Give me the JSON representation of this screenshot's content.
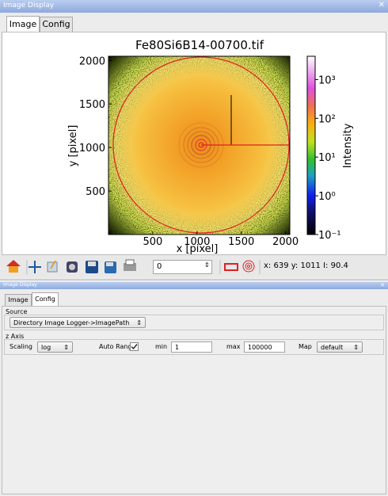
{
  "top_window": {
    "title": "Image Display",
    "tabs": [
      "Image",
      "Config"
    ],
    "plot": {
      "title": "Fe80Si6B14-00700.tif",
      "xlabel": "x [pixel]",
      "ylabel": "y [pixel]",
      "xlim": [
        0,
        2048
      ],
      "ylim": [
        0,
        2048
      ],
      "xticks": [
        500,
        1000,
        1500,
        2000
      ],
      "yticks": [
        500,
        1000,
        1500,
        2000
      ],
      "colorbar": {
        "label": "Intensity",
        "scale": "log",
        "lim": [
          0.1,
          4000
        ],
        "ticks": [
          {
            "value": 0.1,
            "label": "10⁻¹"
          },
          {
            "value": 1,
            "label": "10⁰"
          },
          {
            "value": 10,
            "label": "10¹"
          },
          {
            "value": 100,
            "label": "10²"
          },
          {
            "value": 1000,
            "label": "10³"
          }
        ]
      }
    },
    "toolbar": {
      "frame": "0",
      "status": "x: 639 y: 1011 I: 90.4"
    }
  },
  "bottom_window": {
    "title": "Image Display",
    "tabs": [
      "Image",
      "Config"
    ],
    "source": {
      "label": "Source",
      "value": "Directory Image Logger->ImagePath"
    },
    "z_axis": {
      "label": "z Axis",
      "scaling_label": "Scaling",
      "scaling": "log",
      "auto_range_label": "Auto Range",
      "auto_range": true,
      "min_label": "min",
      "min": "1",
      "max_label": "max",
      "max": "100000",
      "map_label": "Map",
      "map": "default"
    }
  }
}
